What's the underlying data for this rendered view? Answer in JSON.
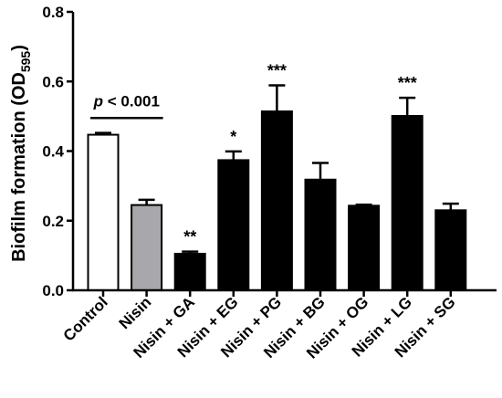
{
  "chart_data": {
    "type": "bar",
    "ylabel": "Biofilm formation (OD",
    "ylabel_sub": "595",
    "ylabel_close": ")",
    "ylim": [
      0,
      0.8
    ],
    "yticks": [
      {
        "value": 0,
        "label": "0.0"
      },
      {
        "value": 0.2,
        "label": "0.2"
      },
      {
        "value": 0.4,
        "label": "0.4"
      },
      {
        "value": 0.6,
        "label": "0.6"
      },
      {
        "value": 0.8,
        "label": "0.8"
      }
    ],
    "grid": false,
    "categories": [
      "Control",
      "Nisin",
      "Nisin + GA",
      "Nisin + EG",
      "Nisin + PG",
      "Nisin + BG",
      "Nisin + OG",
      "Nisin + LG",
      "Nisin + SG"
    ],
    "values": [
      0.447,
      0.245,
      0.105,
      0.374,
      0.514,
      0.318,
      0.243,
      0.501,
      0.23
    ],
    "errors": [
      0.005,
      0.015,
      0.006,
      0.025,
      0.075,
      0.048,
      0.003,
      0.052,
      0.019
    ],
    "significance": [
      "",
      "",
      "**",
      "*",
      "***",
      "",
      "",
      "***",
      ""
    ],
    "colors": [
      "#ffffff",
      "#a8a8ac",
      "#000000",
      "#000000",
      "#000000",
      "#000000",
      "#000000",
      "#000000",
      "#000000"
    ],
    "annotation": {
      "p_symbol": "p",
      "text": " < 0.001",
      "from_category": 0,
      "to_category": 1,
      "y": 0.495
    }
  }
}
